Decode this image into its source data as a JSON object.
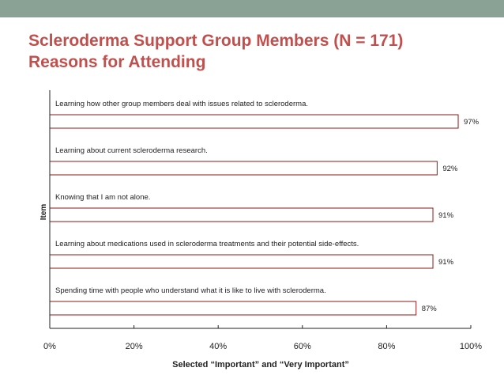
{
  "title": {
    "line1": "Scleroderma Support Group Members (N = 171)",
    "line2": "Reasons for Attending"
  },
  "colors": {
    "band": "#8aa196",
    "title": "#c0504d",
    "bar_border": "#8b1a1a",
    "axis": "#222222",
    "text": "#222222"
  },
  "chart_data": {
    "type": "bar",
    "orientation": "horizontal",
    "categories": [
      "Learning how other group members deal with issues related to scleroderma.",
      "Learning about current scleroderma research.",
      "Knowing that I am not alone.",
      "Learning about medications used in scleroderma treatments and their potential side-effects.",
      "Spending time with people who understand what it is like to live with scleroderma."
    ],
    "values": [
      97,
      92,
      91,
      91,
      87
    ],
    "value_labels": [
      "97%",
      "92%",
      "91%",
      "91%",
      "87%"
    ],
    "xlim": [
      0,
      100
    ],
    "xticks": [
      0,
      20,
      40,
      60,
      80,
      100
    ],
    "xtick_labels": [
      "0%",
      "20%",
      "40%",
      "60%",
      "80%",
      "100%"
    ],
    "xlabel": "Selected “Important” and “Very Important”",
    "ylabel": "Item",
    "grid": false,
    "legend": "none"
  }
}
